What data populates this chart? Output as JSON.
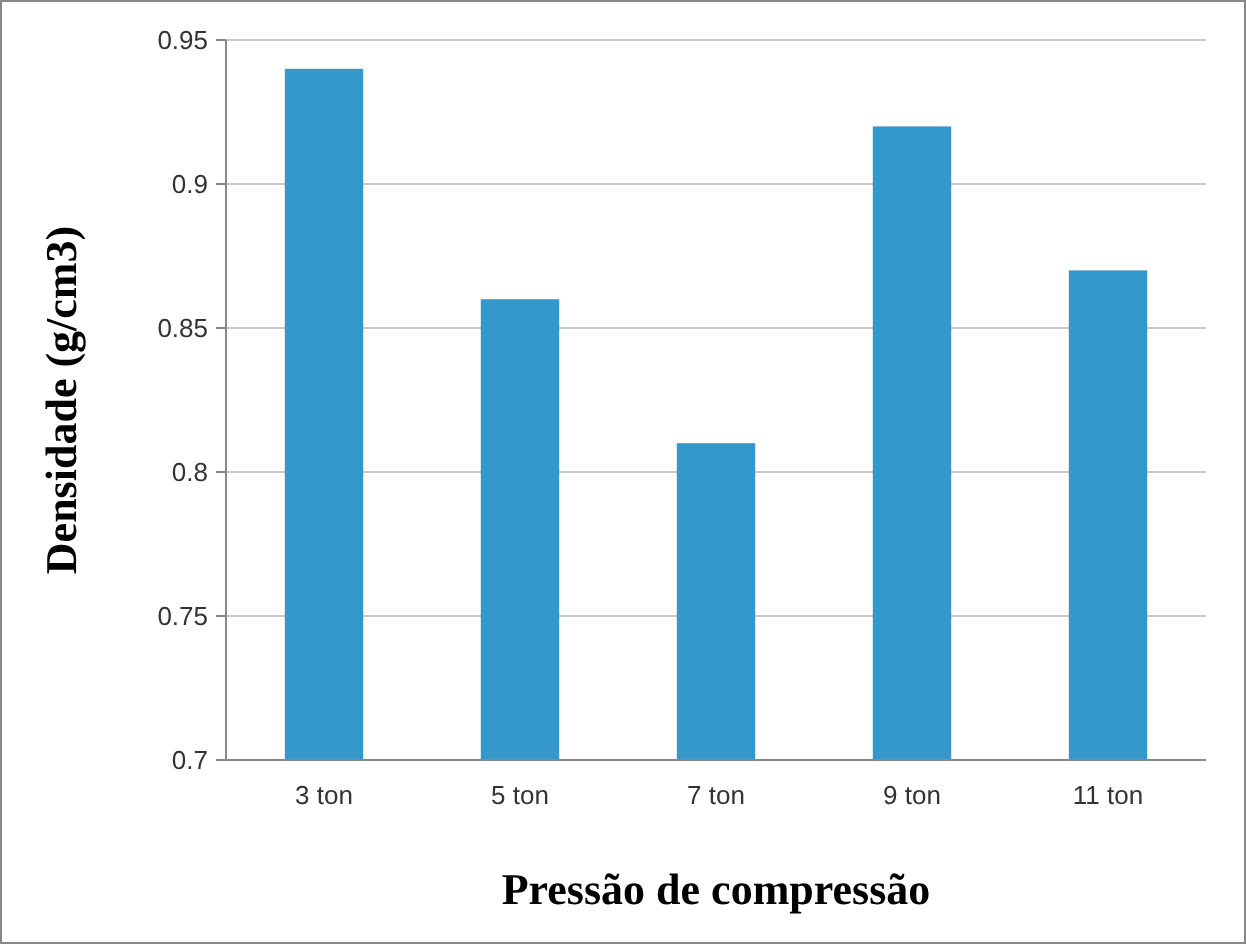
{
  "chart_data": {
    "type": "bar",
    "xlabel": "Pressão de compressão",
    "ylabel": "Densidade (g/cm3)",
    "categories": [
      "3 ton",
      "5 ton",
      "7 ton",
      "9 ton",
      "11 ton"
    ],
    "values": [
      0.94,
      0.86,
      0.81,
      0.92,
      0.87
    ],
    "color": "#3399cc",
    "ylim": [
      0.7,
      0.95
    ],
    "yticks": [
      0.7,
      0.75,
      0.8,
      0.85,
      0.9,
      0.95
    ],
    "grid": "y"
  }
}
